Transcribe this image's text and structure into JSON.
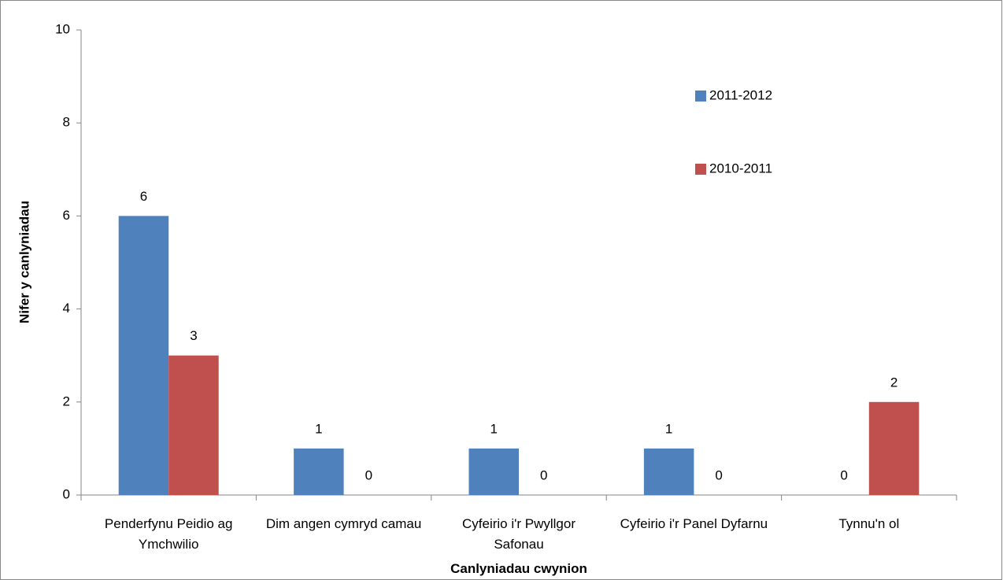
{
  "chart_data": {
    "type": "bar",
    "x_label": "Canlyniadau cwynion",
    "y_label": "Nifer y canlyniadau",
    "categories": [
      "Penderfynu Peidio ag Ymchwilio",
      "Dim angen cymryd camau",
      "Cyfeirio i'r Pwyllgor Safonau",
      "Cyfeirio i'r Panel Dyfarnu",
      "Tynnu'n ol"
    ],
    "series": [
      {
        "name": "2011-2012",
        "color": "#4f81bd",
        "values": [
          6,
          1,
          1,
          1,
          0
        ]
      },
      {
        "name": "2010-2011",
        "color": "#c0504d",
        "values": [
          3,
          0,
          0,
          0,
          2
        ]
      }
    ],
    "ylim": [
      0,
      10
    ],
    "yticks": [
      0,
      2,
      4,
      6,
      8,
      10
    ],
    "grid": false,
    "legend": "upper right"
  }
}
